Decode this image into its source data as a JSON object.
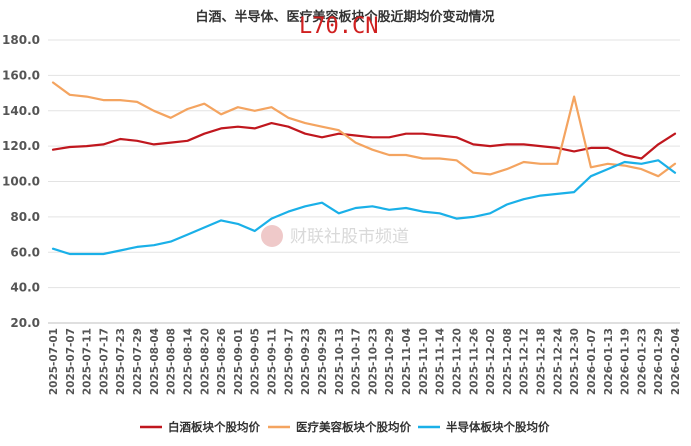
{
  "overlay_text": "L70.CN",
  "watermark_text": "财联社股市频道",
  "chart_data": {
    "type": "line",
    "title": "白酒、半导体、医疗美容板块个股近期均价变动情况",
    "ylim": [
      20,
      180
    ],
    "yticks": [
      "20.0",
      "40.0",
      "60.0",
      "80.0",
      "100.0",
      "120.0",
      "140.0",
      "160.0",
      "180.0"
    ],
    "grid": true,
    "legend_position": "bottom",
    "x": [
      "2025-07-01",
      "2025-07-07",
      "2025-07-11",
      "2025-07-17",
      "2025-07-23",
      "2025-07-29",
      "2025-08-04",
      "2025-08-08",
      "2025-08-14",
      "2025-08-20",
      "2025-08-26",
      "2025-09-01",
      "2025-09-05",
      "2025-09-11",
      "2025-09-17",
      "2025-09-23",
      "2025-09-29",
      "2025-10-13",
      "2025-10-17",
      "2025-10-23",
      "2025-10-29",
      "2025-11-04",
      "2025-11-10",
      "2025-11-14",
      "2025-11-20",
      "2025-11-26",
      "2025-12-02",
      "2025-12-08",
      "2025-12-12",
      "2025-12-18",
      "2025-12-24",
      "2025-12-30",
      "2026-01-07",
      "2026-01-13",
      "2026-01-19",
      "2026-01-23",
      "2026-01-29",
      "2026-02-04"
    ],
    "series": [
      {
        "name": "白酒板块个股均价",
        "color": "#c0171e",
        "values": [
          118,
          119.5,
          120,
          121,
          124,
          123,
          121,
          122,
          123,
          127,
          130,
          131,
          130,
          133,
          131,
          127,
          125,
          127,
          126,
          125,
          125,
          127,
          127,
          126,
          125,
          121,
          120,
          121,
          121,
          120,
          119,
          117,
          119,
          119,
          115,
          113,
          121,
          127
        ]
      },
      {
        "name": "医疗美容板块个股均价",
        "color": "#f4a460",
        "values": [
          156,
          149,
          148,
          146,
          146,
          145,
          140,
          136,
          141,
          144,
          138,
          142,
          140,
          142,
          136,
          133,
          131,
          129,
          122,
          118,
          115,
          115,
          113,
          113,
          112,
          105,
          104,
          107,
          111,
          110,
          110,
          148,
          108,
          110,
          109,
          107,
          103,
          110
        ]
      },
      {
        "name": "半导体板块个股均价",
        "color": "#1ab0e8",
        "values": [
          62,
          59,
          59,
          59,
          61,
          63,
          64,
          66,
          70,
          74,
          78,
          76,
          72,
          79,
          83,
          86,
          88,
          82,
          85,
          86,
          84,
          85,
          83,
          82,
          79,
          80,
          82,
          87,
          90,
          92,
          93,
          94,
          103,
          107,
          111,
          110,
          112,
          105
        ]
      }
    ]
  }
}
